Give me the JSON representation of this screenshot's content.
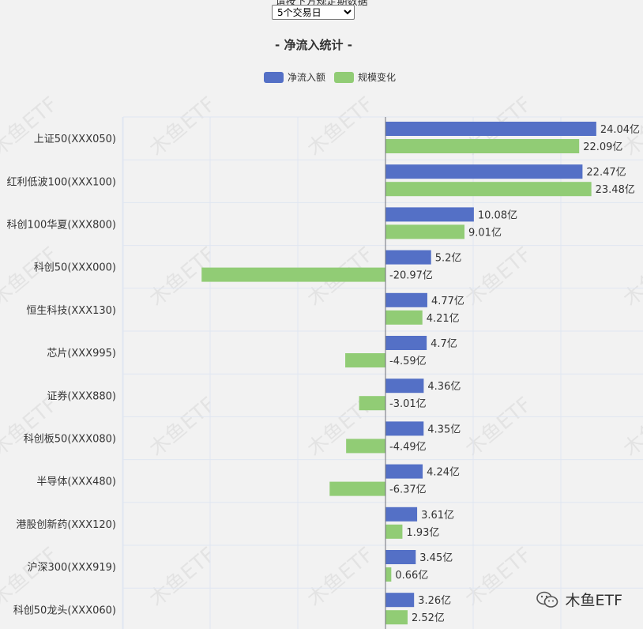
{
  "header": {
    "top_label": "请按下方规定期数据",
    "period_options": [
      "5个交易日"
    ],
    "period_selected": "5个交易日"
  },
  "watermark_text": "木鱼ETF",
  "brand": {
    "name": "木鱼ETF",
    "icon": "wechat-icon"
  },
  "chart_data": {
    "type": "bar",
    "orientation": "horizontal",
    "title": "- 净流入统计 -",
    "legend_position": "top-center",
    "grid": true,
    "unit_suffix": "亿",
    "xlim": [
      -30,
      30
    ],
    "categories": [
      "上证50(XXX050)",
      "红利低波100(XXX100)",
      "科创100华夏(XXX800)",
      "科创50(XXX000)",
      "恒生科技(XXX130)",
      "芯片(XXX995)",
      "证券(XXX880)",
      "科创板50(XXX080)",
      "半导体(XXX480)",
      "港股创新药(XXX120)",
      "沪深300(XXX919)",
      "科创50龙头(XXX060)"
    ],
    "series": [
      {
        "name": "净流入额",
        "color": "#5470c6",
        "values": [
          24.04,
          22.47,
          10.08,
          5.2,
          4.77,
          4.7,
          4.36,
          4.35,
          4.24,
          3.61,
          3.45,
          3.26
        ]
      },
      {
        "name": "规模变化",
        "color": "#91cc75",
        "values": [
          22.09,
          23.48,
          9.01,
          -20.97,
          4.21,
          -4.59,
          -3.01,
          -4.49,
          -6.37,
          1.93,
          0.66,
          2.52
        ]
      }
    ]
  }
}
